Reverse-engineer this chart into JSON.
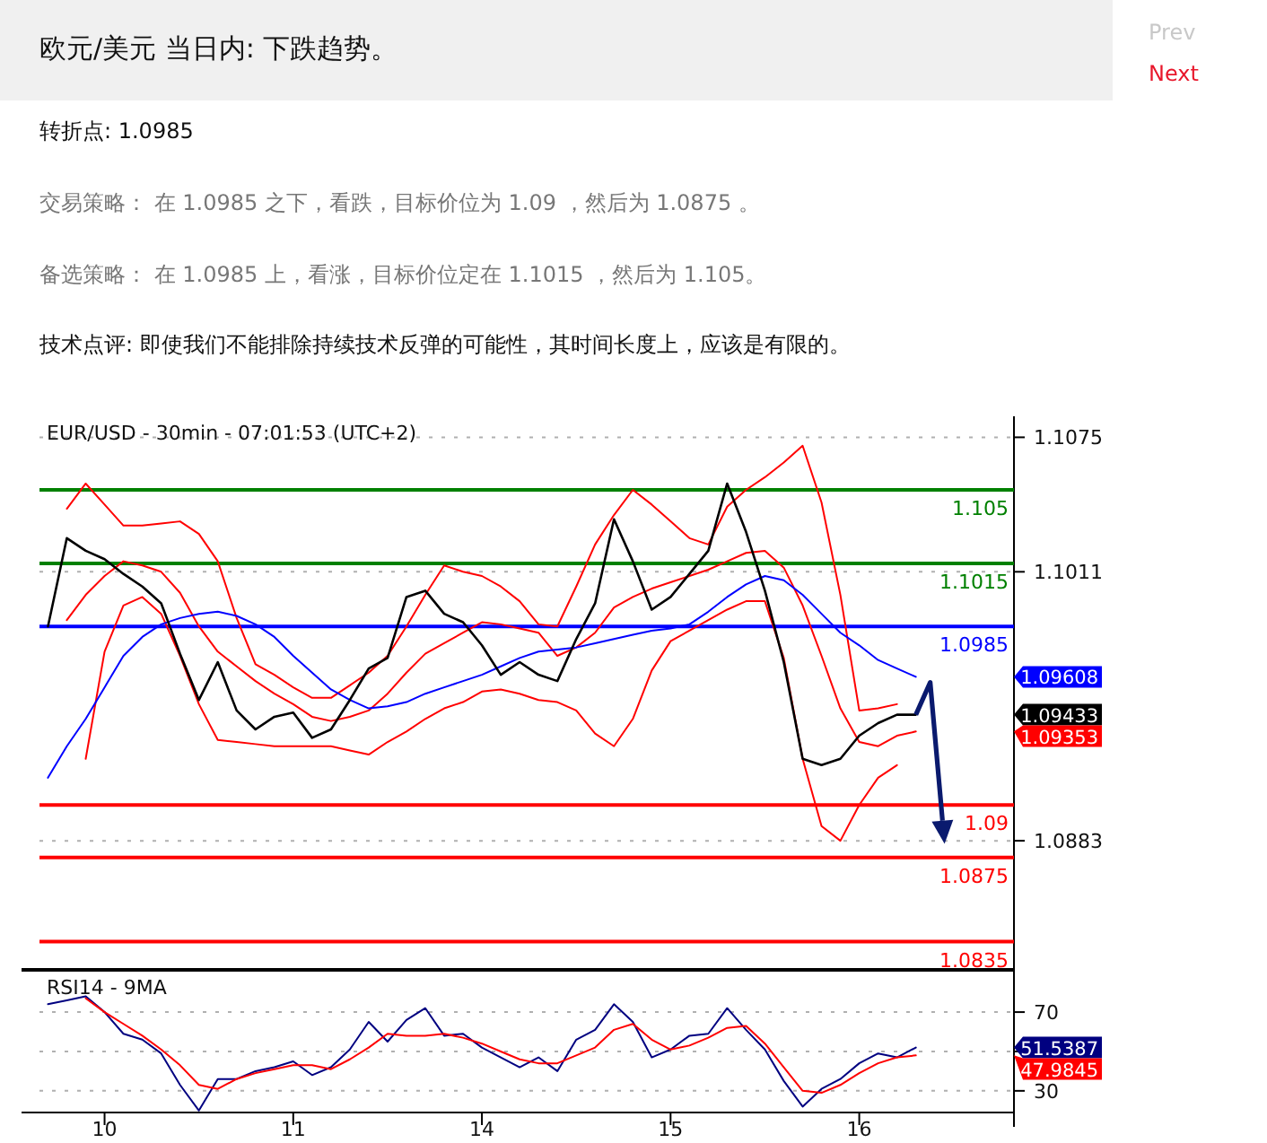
{
  "chart_data": [
    {
      "type": "other",
      "title": "欧元/美元 当日内: 下跌趋势。",
      "annotations": [
        "Prev",
        "Next",
        "转折点: 1.0985",
        "交易策略： 在 1.0985 之下，看跌，目标价位为 1.09 ，然后为 1.0875 。",
        "备选策略： 在 1.0985 上，看涨，目标价位定在 1.1015 ，然后为 1.105。",
        "技术点评: 即使我们不能排除持续技术反弹的可能性，其时间长度上，应该是有限的。"
      ]
    },
    {
      "type": "line",
      "title": "EUR/USD - 30min - 07:01:53 (UTC+2)",
      "ylim": [
        1.0822,
        1.1085
      ],
      "yticks": [
        1.1075,
        1.1011,
        1.0883
      ],
      "grid": "y",
      "tick_labels": "y",
      "categories": [
        null,
        null,
        null,
        null,
        null,
        null,
        null,
        null,
        null,
        null,
        null,
        null,
        null,
        null,
        null,
        null,
        null,
        null,
        null,
        null,
        null,
        null,
        null,
        null,
        null,
        null,
        null,
        null,
        null,
        null,
        null,
        null,
        null,
        null,
        null,
        null,
        null,
        null,
        null,
        null,
        null,
        null,
        null,
        null,
        null,
        null,
        null
      ],
      "series": [
        {
          "type": "line",
          "color": "#ff0000",
          "values": [
            null,
            1.1041,
            1.1053,
            1.1043,
            1.1033,
            1.1033,
            1.1034,
            1.1035,
            1.1029,
            1.1016,
            1.0989,
            1.0967,
            1.0962,
            1.0956,
            1.0951,
            1.0951,
            1.0957,
            1.0963,
            1.0971,
            1.0985,
            1.1,
            1.1014,
            1.1011,
            1.1009,
            1.1004,
            1.0997,
            1.0986,
            1.0985,
            1.1004,
            1.1024,
            1.1038,
            1.105,
            1.1043,
            1.1035,
            1.1027,
            1.1024,
            1.1042,
            1.105,
            1.1056,
            1.1063,
            1.1071,
            1.1044,
            1.1,
            1.0945,
            1.0946,
            1.0948,
            null
          ]
        },
        {
          "type": "line",
          "color": "#ff0000",
          "values": [
            null,
            1.0988,
            1.1,
            1.1009,
            1.1016,
            1.1014,
            1.1011,
            1.1001,
            1.0985,
            1.0973,
            1.0966,
            1.0959,
            1.0953,
            1.0948,
            1.0942,
            1.094,
            1.0942,
            1.0945,
            1.0953,
            1.0963,
            1.0972,
            1.0977,
            1.0982,
            1.0987,
            1.0986,
            1.0984,
            1.0982,
            1.0971,
            1.0975,
            1.0982,
            1.0994,
            1.0999,
            1.1003,
            1.1006,
            1.1009,
            1.1012,
            1.1016,
            1.102,
            1.1021,
            1.1013,
            1.0995,
            1.0971,
            1.0946,
            1.093,
            1.0928,
            1.0933,
            1.0935
          ]
        },
        {
          "type": "line",
          "color": "#ff0000",
          "values": [
            null,
            null,
            1.0922,
            1.0973,
            1.0995,
            1.0999,
            1.0991,
            1.0971,
            1.0948,
            1.0931,
            1.093,
            1.0929,
            1.0928,
            1.0928,
            1.0928,
            1.0928,
            1.0926,
            1.0924,
            1.093,
            1.0935,
            1.0941,
            1.0946,
            1.0949,
            1.0954,
            1.0955,
            1.0953,
            1.095,
            1.0949,
            1.0945,
            1.0934,
            1.0928,
            1.0941,
            1.0964,
            1.0978,
            1.0983,
            1.0988,
            1.0993,
            1.0997,
            1.0997,
            1.097,
            1.0922,
            1.089,
            1.0883,
            1.09,
            1.0913,
            1.0919,
            null
          ]
        },
        {
          "type": "line",
          "color": "#0000ff",
          "values": [
            1.0913,
            1.0928,
            1.0941,
            1.0956,
            1.0971,
            1.098,
            1.0986,
            1.0989,
            1.0991,
            1.0992,
            1.099,
            1.0986,
            1.098,
            1.0971,
            1.0963,
            1.0955,
            1.095,
            1.0946,
            1.0947,
            1.0949,
            1.0953,
            1.0956,
            1.0959,
            1.0962,
            1.0966,
            1.097,
            1.0973,
            1.0974,
            1.0975,
            1.0977,
            1.0979,
            1.0981,
            1.0983,
            1.0984,
            1.0986,
            1.0992,
            1.0999,
            1.1005,
            1.1009,
            1.1007,
            1.1,
            1.0991,
            1.0982,
            1.0976,
            1.0969,
            1.0965,
            1.0961
          ]
        },
        {
          "type": "line",
          "color": "#000000",
          "values": [
            1.0985,
            1.1027,
            1.1021,
            1.1017,
            1.101,
            1.1004,
            1.0996,
            1.0972,
            1.095,
            1.0968,
            1.0945,
            1.0936,
            1.0942,
            1.0944,
            1.0932,
            1.0936,
            1.095,
            1.0965,
            1.097,
            1.0999,
            1.1002,
            1.0991,
            1.0987,
            1.0976,
            1.0962,
            1.0968,
            1.0962,
            1.0959,
            1.0979,
            1.0996,
            1.1036,
            1.1016,
            1.0993,
            1.0999,
            1.101,
            1.1021,
            1.1053,
            1.103,
            1.1002,
            1.0968,
            1.0922,
            1.0919,
            1.0922,
            1.0933,
            1.0939,
            1.0943,
            1.0943
          ]
        }
      ],
      "annotations": [
        "1.09608",
        "1.09433",
        "1.09353"
      ],
      "ref_lines": [
        {
          "axis": "y",
          "value": 1.105,
          "label": "1.105",
          "color": "#008000"
        },
        {
          "axis": "y",
          "value": 1.1015,
          "label": "1.1015",
          "color": "#008000"
        },
        {
          "axis": "y",
          "value": 1.0985,
          "label": "1.0985",
          "color": "#0000ff"
        },
        {
          "axis": "y",
          "value": 1.09,
          "label": "1.09",
          "color": "#ff0000"
        },
        {
          "axis": "y",
          "value": 1.0875,
          "label": "1.0875",
          "color": "#ff0000"
        },
        {
          "axis": "y",
          "value": 1.0835,
          "label": "1.0835",
          "color": "#ff0000"
        }
      ]
    },
    {
      "type": "line",
      "title": "RSI14 - 9MA",
      "ylim": [
        19,
        91
      ],
      "yticks": [
        30,
        {
          "value": 50,
          "label": null
        },
        70
      ],
      "grid": "y",
      "categories": [
        null,
        null,
        null,
        "10",
        null,
        null,
        null,
        null,
        null,
        null,
        null,
        null,
        null,
        "11",
        null,
        null,
        null,
        null,
        null,
        null,
        null,
        null,
        null,
        "14",
        null,
        null,
        null,
        null,
        null,
        null,
        null,
        null,
        null,
        "15",
        null,
        null,
        null,
        null,
        null,
        null,
        null,
        null,
        null,
        "16",
        null,
        null,
        null
      ],
      "series": [
        {
          "type": "line",
          "color": "#000080",
          "values": [
            74,
            76,
            78,
            70,
            59,
            56,
            49,
            33,
            20,
            36,
            36,
            40,
            42,
            45,
            38,
            42,
            51,
            65,
            55,
            66,
            72,
            58,
            59,
            52,
            47,
            42,
            47,
            40,
            56,
            61,
            74,
            65,
            47,
            51,
            58,
            59,
            72,
            61,
            51,
            35,
            22,
            31,
            36,
            44,
            49,
            47,
            52
          ]
        },
        {
          "type": "line",
          "color": "#ff0000",
          "values": [
            null,
            null,
            77,
            70,
            64,
            58,
            51,
            43,
            33,
            31,
            36,
            39,
            41,
            43,
            43,
            41,
            46,
            52,
            59,
            58,
            58,
            59,
            57,
            54,
            50,
            46,
            44,
            44,
            48,
            52,
            61,
            64,
            56,
            51,
            53,
            57,
            62,
            63,
            54,
            42,
            30,
            29,
            33,
            39,
            44,
            47,
            48
          ]
        }
      ],
      "annotations": [
        "51.5387",
        "47.9845"
      ]
    }
  ]
}
